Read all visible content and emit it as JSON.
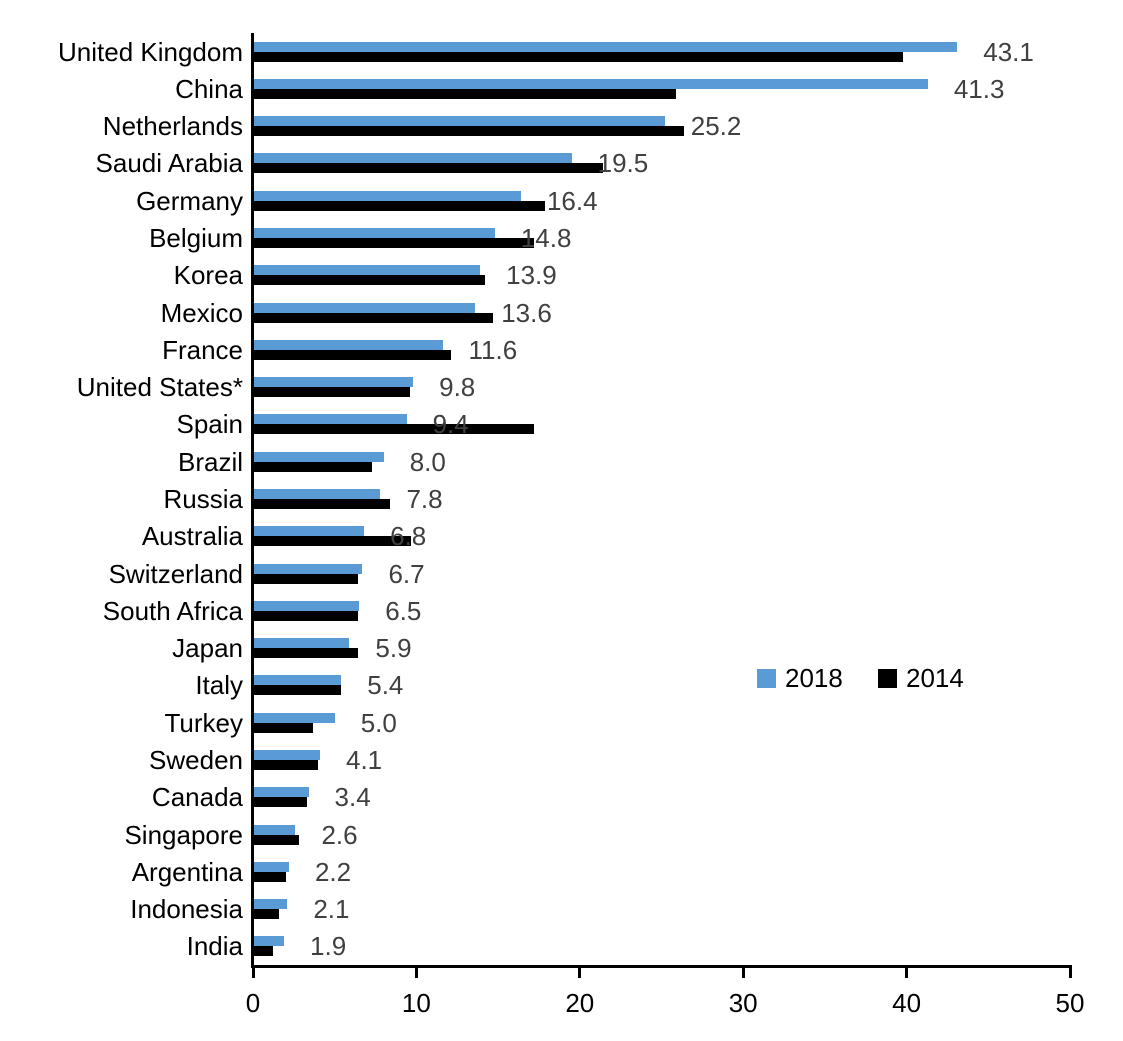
{
  "chart_data": {
    "type": "bar",
    "orientation": "horizontal",
    "title": "",
    "xlabel": "",
    "ylabel": "",
    "categories": [
      "United Kingdom",
      "China",
      "Netherlands",
      "Saudi Arabia",
      "Germany",
      "Belgium",
      "Korea",
      "Mexico",
      "France",
      "United States*",
      "Spain",
      "Brazil",
      "Russia",
      "Australia",
      "Switzerland",
      "South Africa",
      "Japan",
      "Italy",
      "Turkey",
      "Sweden",
      "Canada",
      "Singapore",
      "Argentina",
      "Indonesia",
      "India"
    ],
    "series": [
      {
        "name": "2018",
        "color": "#5B9BD5",
        "values": [
          43.1,
          41.3,
          25.2,
          19.5,
          16.4,
          14.8,
          13.9,
          13.6,
          11.6,
          9.8,
          9.4,
          8.0,
          7.8,
          6.8,
          6.7,
          6.5,
          5.9,
          5.4,
          5.0,
          4.1,
          3.4,
          2.6,
          2.2,
          2.1,
          1.9
        ]
      },
      {
        "name": "2014",
        "color": "#000000",
        "values": [
          39.8,
          25.9,
          26.4,
          21.4,
          17.9,
          17.2,
          14.2,
          14.7,
          12.1,
          9.6,
          17.2,
          7.3,
          8.4,
          9.7,
          6.4,
          6.4,
          6.4,
          5.4,
          3.7,
          4.0,
          3.3,
          2.8,
          2.0,
          1.6,
          1.2
        ]
      }
    ],
    "value_labels": [
      "43.1",
      "41.3",
      "25.2",
      "19.5",
      "16.4",
      "14.8",
      "13.9",
      "13.6",
      "11.6",
      "9.8",
      "9.4",
      "8.0",
      "7.8",
      "6.8",
      "6.7",
      "6.5",
      "5.9",
      "5.4",
      "5.0",
      "4.1",
      "3.4",
      "2.6",
      "2.2",
      "2.1",
      "1.9"
    ],
    "value_label_series": "2018",
    "value_label_color": "#404040",
    "axis": {
      "xlim": [
        0,
        50
      ],
      "tick_values": [
        0,
        10,
        20,
        30,
        40,
        50
      ],
      "tick_labels": [
        "0",
        "10",
        "20",
        "30",
        "40",
        "50"
      ],
      "grid": false
    },
    "legend": {
      "position": "middle-right",
      "entries": [
        {
          "label": "2018",
          "color": "#5B9BD5"
        },
        {
          "label": "2014",
          "color": "#000000"
        }
      ]
    }
  }
}
